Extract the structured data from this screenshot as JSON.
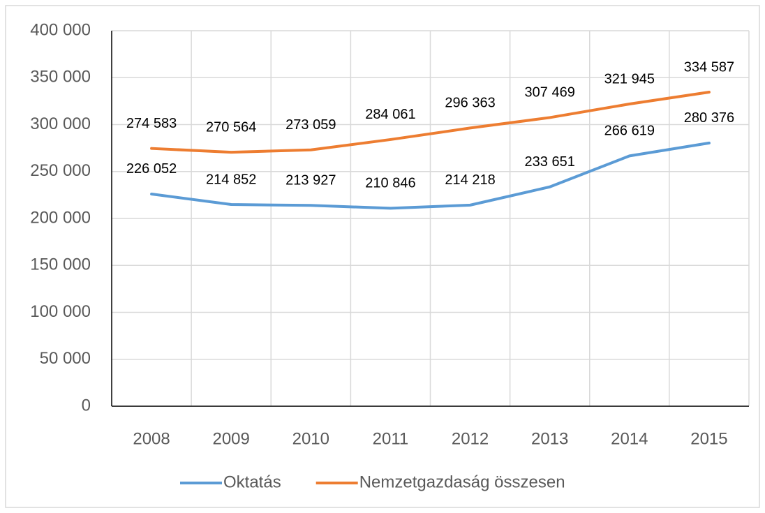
{
  "chart_data": {
    "type": "line",
    "categories": [
      "2008",
      "2009",
      "2010",
      "2011",
      "2012",
      "2013",
      "2014",
      "2015"
    ],
    "series": [
      {
        "name": "Oktatás",
        "color": "#5b9bd5",
        "values": [
          226052,
          214852,
          213927,
          210846,
          214218,
          233651,
          266619,
          280376
        ],
        "value_labels": [
          "226 052",
          "214 852",
          "213 927",
          "210 846",
          "214 218",
          "233 651",
          "266 619",
          "280 376"
        ]
      },
      {
        "name": "Nemzetgazdaság összesen",
        "color": "#ed7d31",
        "values": [
          274583,
          270564,
          273059,
          284061,
          296363,
          307469,
          321945,
          334587
        ],
        "value_labels": [
          "274 583",
          "270 564",
          "273 059",
          "284 061",
          "296 363",
          "307 469",
          "321 945",
          "334 587"
        ]
      }
    ],
    "ylim": [
      0,
      400000
    ],
    "yticks": [
      0,
      {
        "value": 50000,
        "label": "50 000"
      },
      {
        "value": 100000,
        "label": "100 000"
      },
      {
        "value": 150000,
        "label": "150 000"
      },
      {
        "value": 200000,
        "label": "200 000"
      },
      {
        "value": 250000,
        "label": "250 000"
      },
      {
        "value": 300000,
        "label": "300 000"
      },
      {
        "value": 350000,
        "label": "350 000"
      },
      {
        "value": 400000,
        "label": "400 000"
      }
    ],
    "grid": true,
    "legend": "bottom"
  }
}
